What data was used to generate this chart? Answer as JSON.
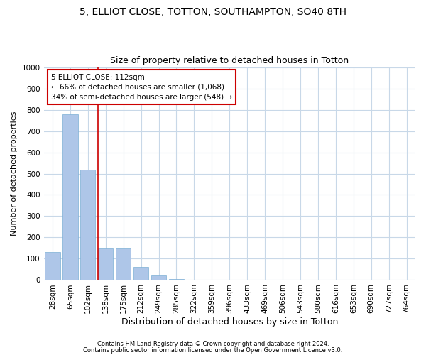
{
  "title1": "5, ELLIOT CLOSE, TOTTON, SOUTHAMPTON, SO40 8TH",
  "title2": "Size of property relative to detached houses in Totton",
  "xlabel": "Distribution of detached houses by size in Totton",
  "ylabel": "Number of detached properties",
  "footnote1": "Contains HM Land Registry data © Crown copyright and database right 2024.",
  "footnote2": "Contains public sector information licensed under the Open Government Licence v3.0.",
  "bin_labels": [
    "28sqm",
    "65sqm",
    "102sqm",
    "138sqm",
    "175sqm",
    "212sqm",
    "249sqm",
    "285sqm",
    "322sqm",
    "359sqm",
    "396sqm",
    "433sqm",
    "469sqm",
    "506sqm",
    "543sqm",
    "580sqm",
    "616sqm",
    "653sqm",
    "690sqm",
    "727sqm",
    "764sqm"
  ],
  "bar_values": [
    130,
    780,
    520,
    150,
    150,
    60,
    20,
    5,
    2,
    1,
    0,
    0,
    0,
    0,
    0,
    0,
    0,
    0,
    0,
    0,
    0
  ],
  "bar_color": "#aec6e8",
  "bar_edge_color": "#7bafd4",
  "property_line_x": 2.57,
  "property_line_color": "#cc0000",
  "annotation_line1": "5 ELLIOT CLOSE: 112sqm",
  "annotation_line2": "← 66% of detached houses are smaller (1,068)",
  "annotation_line3": "34% of semi-detached houses are larger (548) →",
  "annotation_box_color": "#cc0000",
  "ylim": [
    0,
    1000
  ],
  "yticks": [
    0,
    100,
    200,
    300,
    400,
    500,
    600,
    700,
    800,
    900,
    1000
  ],
  "background_color": "#ffffff",
  "grid_color": "#c8d8e8",
  "title1_fontsize": 10,
  "title2_fontsize": 9,
  "annot_fontsize": 7.5,
  "xlabel_fontsize": 9,
  "ylabel_fontsize": 8,
  "tick_fontsize": 7.5,
  "footnote_fontsize": 6
}
